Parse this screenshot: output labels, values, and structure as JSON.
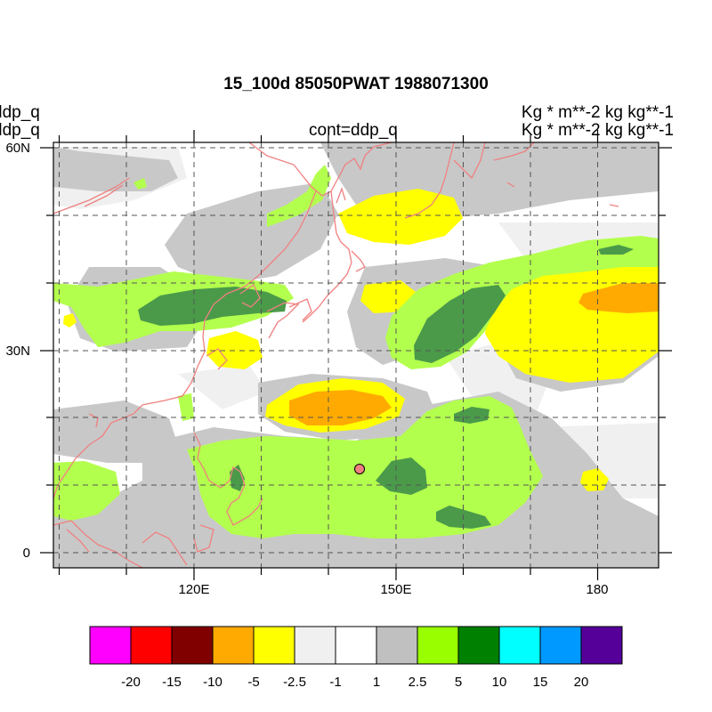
{
  "title": "15_100d 85050PWAT  1988071300",
  "left_titles": [
    "ddp_q",
    "ddp_q"
  ],
  "center_subtitle": "cont=ddp_q",
  "right_titles": [
    "Kg  * m**-2 kg kg**-1",
    "Kg  * m**-2 kg kg**-1"
  ],
  "map": {
    "lon_labels": [
      "120E",
      "150E",
      "180"
    ],
    "lat_labels": [
      "60N",
      "30N",
      "0"
    ],
    "coastline_color": "#f08080",
    "marker_color": "#f08080"
  },
  "colorbar": {
    "colors": [
      "#ff00ff",
      "#ff0000",
      "#800000",
      "#ffaa00",
      "#ffff00",
      "#f0f0f0",
      "#ffffff",
      "#c0c0c0",
      "#99ff00",
      "#008000",
      "#00ffff",
      "#0099ff",
      "#550099"
    ],
    "labels": [
      "-20",
      "-15",
      "-10",
      "-5",
      "-2.5",
      "-1",
      "1",
      "2.5",
      "5",
      "10",
      "15",
      "20"
    ]
  }
}
